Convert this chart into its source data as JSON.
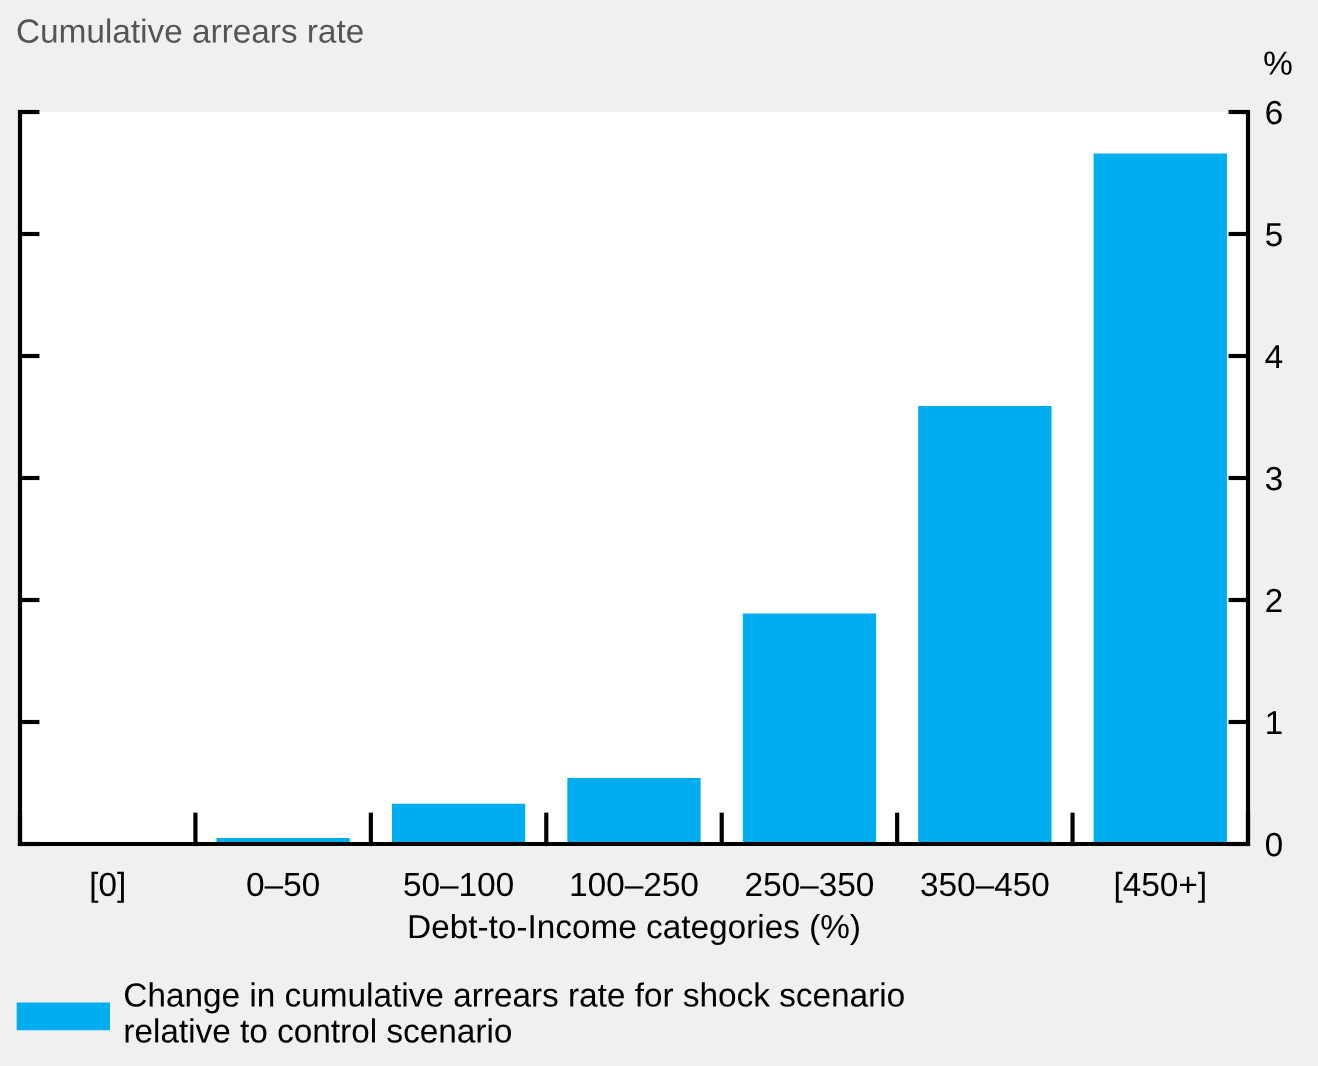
{
  "chart_data": {
    "type": "bar",
    "subtitle": "Cumulative arrears rate",
    "ylabel": "%",
    "xlabel": "Debt-to-Income categories (%)",
    "categories": [
      "[0]",
      "0–50",
      "50–100",
      "100–250",
      "250–350",
      "350–450",
      "[450+]"
    ],
    "series": [
      {
        "name": "Change in cumulative arrears rate for shock scenario\nrelative to control scenario",
        "color": "#00aeef",
        "values": [
          0,
          0.05,
          0.33,
          0.54,
          1.89,
          3.59,
          5.66
        ]
      }
    ],
    "ylim": [
      0,
      6
    ],
    "yticks": [
      0,
      1,
      2,
      3,
      4,
      5,
      6
    ],
    "grid": false,
    "legend": "bottom left"
  }
}
